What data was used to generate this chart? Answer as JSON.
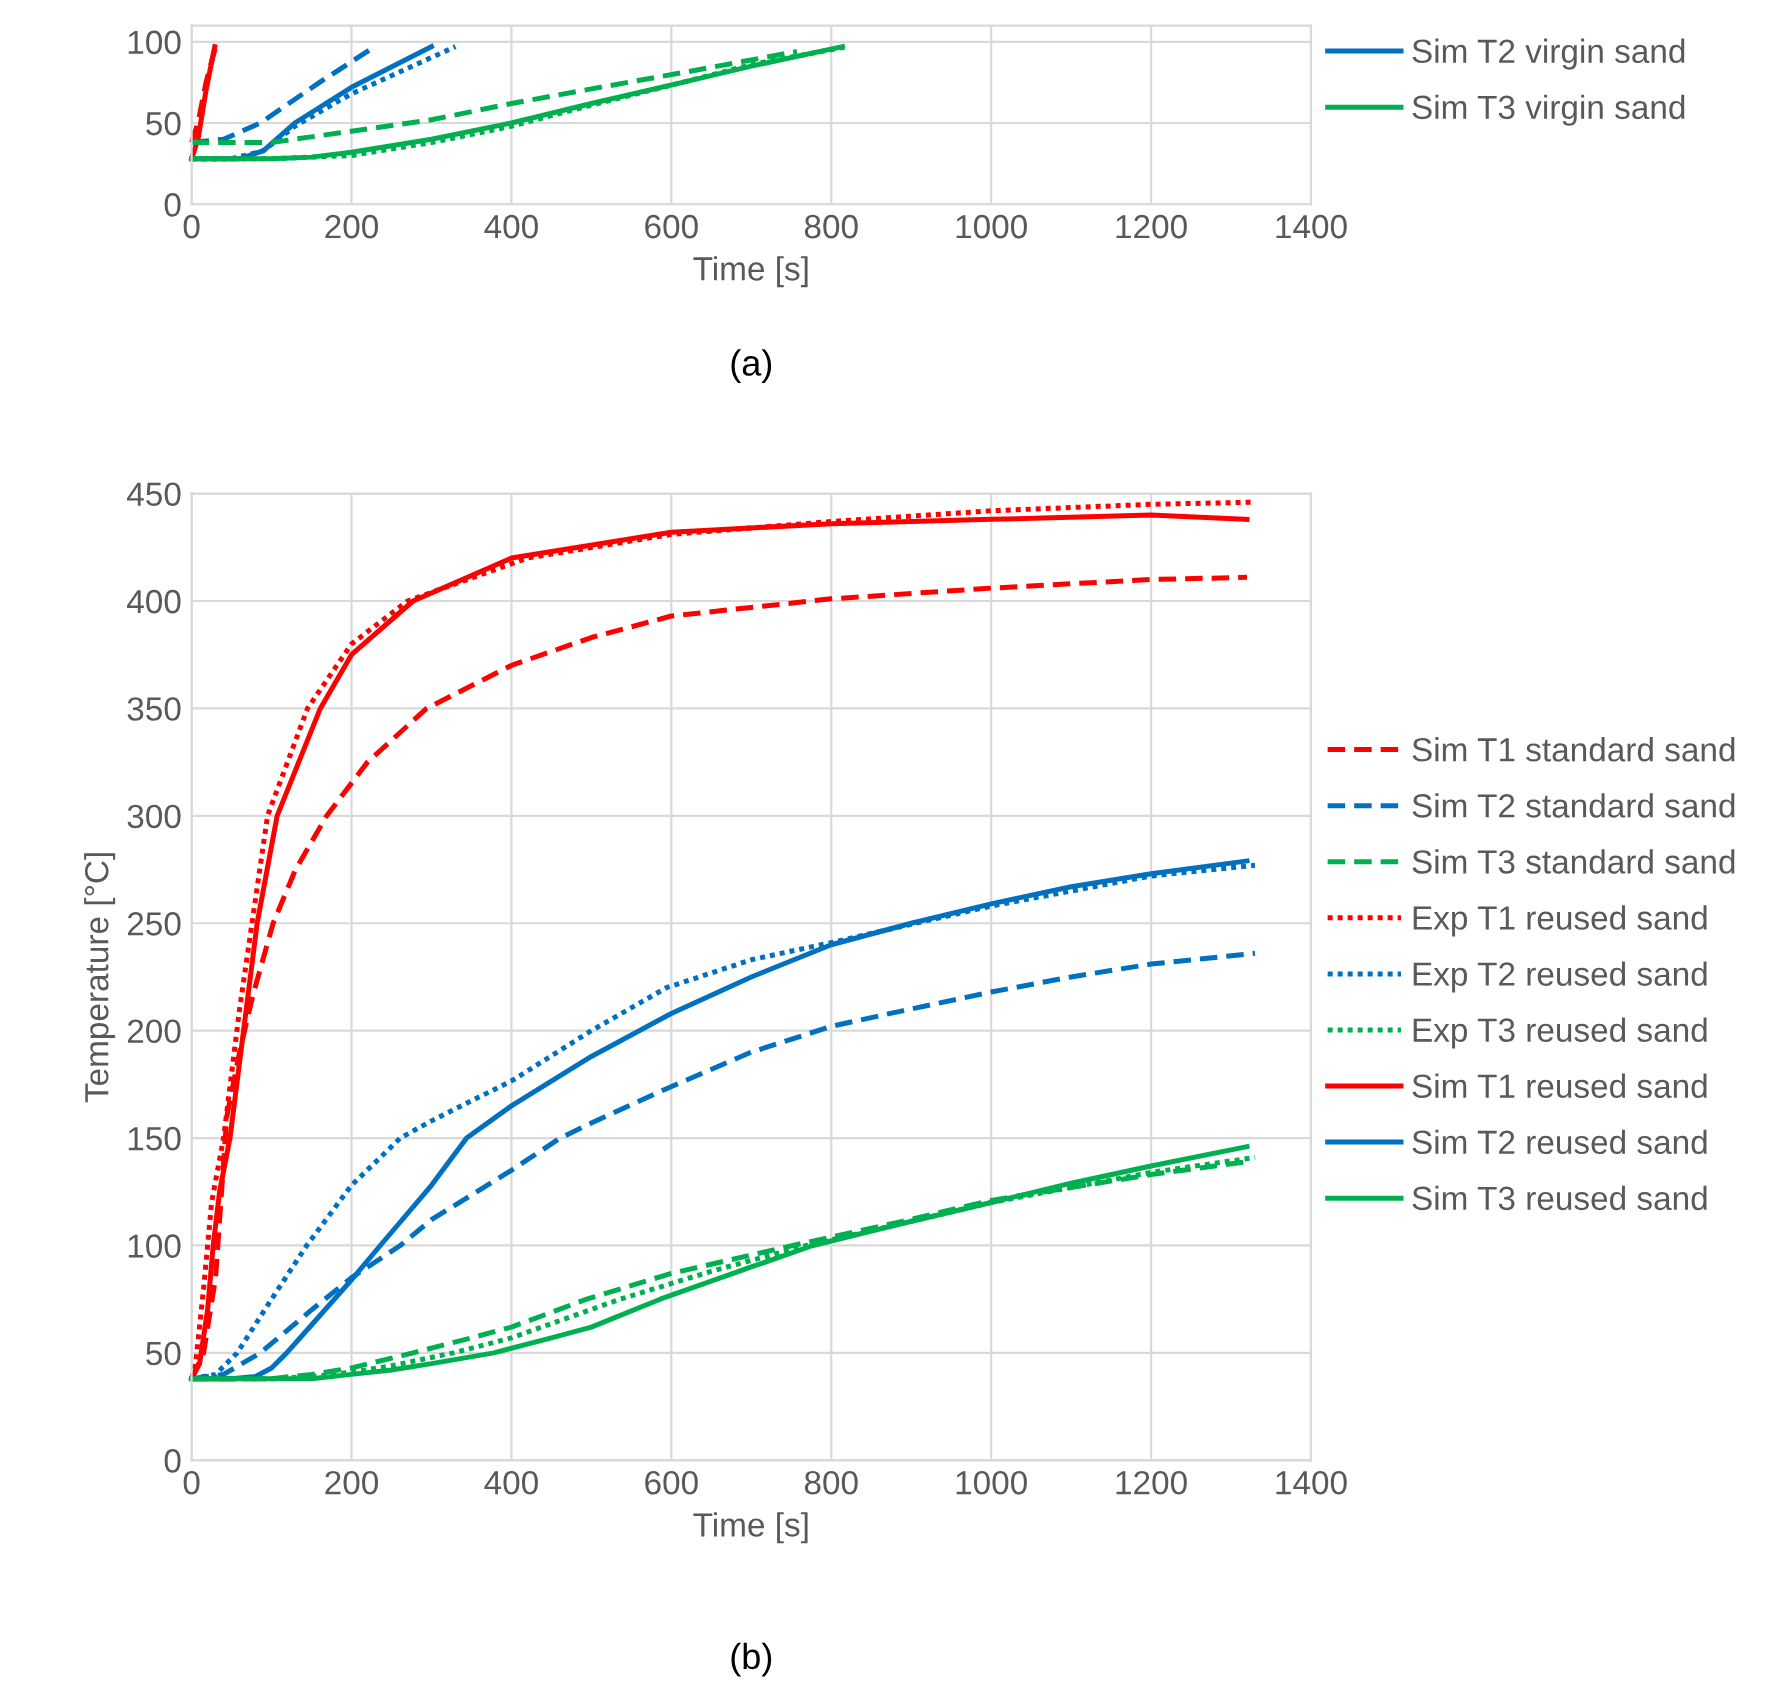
{
  "chart_data": [
    {
      "type": "line",
      "xlabel": "Time [s]",
      "annotations": [
        "(a)"
      ],
      "xlim": [
        0,
        1400
      ],
      "xticks": [
        0,
        200,
        400,
        600,
        800,
        1000,
        1200,
        1400
      ],
      "ylim": [
        0,
        110
      ],
      "yticks": [
        0,
        50,
        100
      ],
      "grid": true,
      "legend": "top right",
      "series": [
        {
          "color": "#ff0000",
          "line_style": "dashed",
          "x": [
            0,
            8,
            18,
            30
          ],
          "values": [
            38,
            50,
            75,
            97
          ]
        },
        {
          "color": "#ff0000",
          "line_style": "solid",
          "x": [
            0,
            8,
            18,
            29
          ],
          "values": [
            28,
            40,
            70,
            97
          ]
        },
        {
          "color": "#0070c0",
          "line_style": "dashed",
          "x": [
            0,
            40,
            86,
            160,
            229
          ],
          "values": [
            38,
            40,
            50,
            75,
            97
          ]
        },
        {
          "color": "#0070c0",
          "line_style": "dotted",
          "x": [
            0,
            50,
            90,
            129,
            200,
            330
          ],
          "values": [
            28,
            28,
            33,
            48,
            68,
            97
          ]
        },
        {
          "name": "Sim T2 virgin sand",
          "color": "#0070c0",
          "line_style": "solid",
          "x": [
            0,
            60,
            90,
            129,
            200,
            300
          ],
          "values": [
            28,
            28,
            33,
            50,
            72,
            97
          ]
        },
        {
          "color": "#00b050",
          "line_style": "dashed",
          "x": [
            0,
            100,
            186,
            300,
            400,
            500,
            614,
            757
          ],
          "values": [
            38,
            38,
            44,
            52,
            62,
            71,
            81,
            94
          ]
        },
        {
          "color": "#00b050",
          "line_style": "dotted",
          "x": [
            0,
            100,
            200,
            300,
            400,
            500,
            614,
            700,
            820
          ],
          "values": [
            28,
            28,
            30,
            38,
            48,
            61,
            75,
            86,
            97
          ]
        },
        {
          "name": "Sim T3 virgin sand",
          "color": "#00b050",
          "line_style": "solid",
          "x": [
            0,
            100,
            150,
            200,
            300,
            400,
            500,
            614,
            700,
            814
          ],
          "values": [
            28,
            28,
            29,
            32,
            40,
            50,
            62,
            75,
            85,
            97
          ]
        }
      ]
    },
    {
      "type": "line",
      "xlabel": "Time [s]",
      "ylabel": "Temperature [°C]",
      "annotations": [
        "(b)"
      ],
      "xlim": [
        0,
        1400
      ],
      "xticks": [
        0,
        200,
        400,
        600,
        800,
        1000,
        1200,
        1400
      ],
      "ylim": [
        0,
        450
      ],
      "yticks": [
        0,
        50,
        100,
        150,
        200,
        250,
        300,
        350,
        400,
        450
      ],
      "grid": true,
      "legend": "right",
      "series": [
        {
          "name": "Sim T1 standard sand",
          "color": "#ff0000",
          "line_style": "dashed",
          "x": [
            0,
            15,
            30,
            44,
            60,
            77,
            102,
            130,
            169,
            220,
            294,
            400,
            500,
            600,
            800,
            1000,
            1200,
            1320
          ],
          "values": [
            38,
            50,
            85,
            160,
            190,
            217,
            250,
            275,
            300,
            325,
            350,
            370,
            383,
            393,
            401,
            406,
            410,
            411
          ]
        },
        {
          "name": "Sim T2 standard sand",
          "color": "#0070c0",
          "line_style": "dashed",
          "x": [
            0,
            40,
            86,
            150,
            200,
            261,
            300,
            400,
            461,
            500,
            594,
            700,
            800,
            886,
            1000,
            1100,
            1200,
            1330
          ],
          "values": [
            38,
            40,
            50,
            70,
            85,
            100,
            112,
            135,
            150,
            157,
            173,
            190,
            202,
            209,
            218,
            225,
            231,
            236
          ]
        },
        {
          "name": "Sim T3 standard sand",
          "color": "#00b050",
          "line_style": "dashed",
          "x": [
            0,
            100,
            150,
            200,
            277,
            350,
            400,
            494,
            600,
            752,
            886,
            1000,
            1100,
            1200,
            1320
          ],
          "values": [
            38,
            38,
            40,
            43,
            50,
            57,
            62,
            75,
            87,
            100,
            111,
            121,
            127,
            133,
            139
          ]
        },
        {
          "name": "Exp T1 reused sand",
          "color": "#ff0000",
          "line_style": "dotted",
          "x": [
            0,
            5,
            15,
            25,
            40,
            60,
            95,
            145,
            200,
            270,
            420,
            600,
            800,
            1000,
            1200,
            1330
          ],
          "values": [
            38,
            45,
            80,
            120,
            150,
            210,
            300,
            350,
            380,
            400,
            420,
            431,
            437,
            442,
            445,
            446
          ]
        },
        {
          "name": "Exp T2 reused sand",
          "color": "#0070c0",
          "line_style": "dotted",
          "x": [
            0,
            30,
            57,
            100,
            144,
            200,
            261,
            300,
            402,
            500,
            594,
            700,
            800,
            1000,
            1200,
            1330
          ],
          "values": [
            38,
            40,
            50,
            75,
            100,
            128,
            150,
            158,
            177,
            200,
            220,
            233,
            241,
            258,
            272,
            277
          ]
        },
        {
          "name": "Exp T3 reused sand",
          "color": "#00b050",
          "line_style": "dotted",
          "x": [
            0,
            100,
            150,
            200,
            250,
            327,
            400,
            536,
            650,
            769,
            886,
            1000,
            1100,
            1200,
            1330
          ],
          "values": [
            38,
            38,
            39,
            41,
            44,
            50,
            57,
            75,
            88,
            100,
            110,
            120,
            127,
            134,
            141
          ]
        },
        {
          "name": "Sim T1 reused sand",
          "color": "#ff0000",
          "line_style": "solid",
          "x": [
            0,
            10,
            20,
            27,
            35,
            48,
            65,
            82,
            107,
            161,
            200,
            277,
            400,
            600,
            800,
            1000,
            1200,
            1320
          ],
          "values": [
            38,
            45,
            70,
            100,
            125,
            150,
            200,
            250,
            300,
            350,
            375,
            400,
            420,
            432,
            436,
            438,
            440,
            438
          ]
        },
        {
          "name": "Sim T2 reused sand",
          "color": "#0070c0",
          "line_style": "solid",
          "x": [
            0,
            50,
            80,
            100,
            119,
            150,
            200,
            236,
            300,
            344,
            400,
            452,
            500,
            600,
            700,
            800,
            900,
            1000,
            1100,
            1200,
            1320
          ],
          "values": [
            38,
            38,
            39,
            43,
            50,
            63,
            84,
            100,
            128,
            150,
            165,
            177,
            188,
            208,
            225,
            240,
            250,
            259,
            267,
            273,
            279
          ]
        },
        {
          "name": "Sim T3 reused sand",
          "color": "#00b050",
          "line_style": "solid",
          "x": [
            0,
            100,
            150,
            200,
            250,
            300,
            378,
            450,
            500,
            586,
            700,
            777,
            886,
            1000,
            1100,
            1200,
            1320
          ],
          "values": [
            38,
            38,
            38,
            40,
            42,
            45,
            50,
            57,
            62,
            75,
            90,
            100,
            110,
            120,
            129,
            137,
            146
          ]
        }
      ]
    }
  ]
}
